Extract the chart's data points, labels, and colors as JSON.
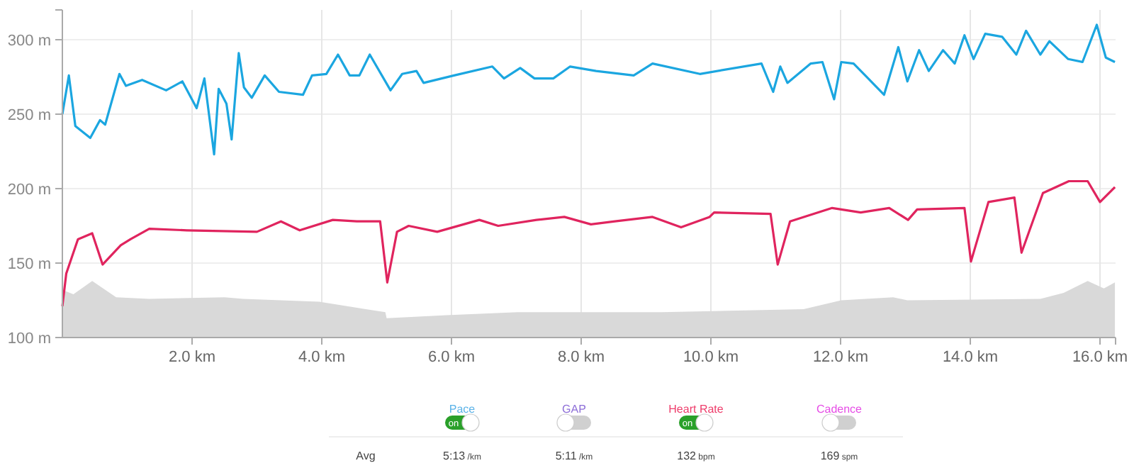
{
  "chart_data": [
    {
      "type": "line",
      "xlim": [
        0,
        16.24
      ],
      "ylim": [
        100,
        320
      ],
      "xticks": [
        {
          "value": 2,
          "label": "2.0 km"
        },
        {
          "value": 4,
          "label": "4.0 km"
        },
        {
          "value": 6,
          "label": "6.0 km"
        },
        {
          "value": 8,
          "label": "8.0 km"
        },
        {
          "value": 10,
          "label": "10.0 km"
        },
        {
          "value": 12,
          "label": "12.0 km"
        },
        {
          "value": 14,
          "label": "14.0 km"
        },
        {
          "value": 16,
          "label": "16.0 km"
        }
      ],
      "yticks": [
        {
          "value": 100,
          "label": "100 m"
        },
        {
          "value": 150,
          "label": "150 m"
        },
        {
          "value": 200,
          "label": "200 m"
        },
        {
          "value": 250,
          "label": "250 m"
        },
        {
          "value": 300,
          "label": "300 m"
        }
      ],
      "grid": true,
      "marker": "none",
      "series": [
        {
          "type": "area",
          "color": "#d9d9d9",
          "x": [
            0,
            0.17,
            0.46,
            0.83,
            1.34,
            2.5,
            2.79,
            3.96,
            4.98,
            5.0,
            5.92,
            7.02,
            8.2,
            9.24,
            11.43,
            12.01,
            12.81,
            13.03,
            15.08,
            15.44,
            15.81,
            16.06,
            16.23
          ],
          "values": [
            132,
            129,
            138,
            127,
            126,
            127,
            126,
            124,
            117,
            113,
            115,
            117,
            117,
            117,
            119,
            125,
            127,
            125,
            126,
            130,
            138,
            133,
            137
          ]
        },
        {
          "type": "line",
          "color": "#1ba6e0",
          "x": [
            0,
            0.1,
            0.2,
            0.43,
            0.58,
            0.66,
            0.88,
            0.98,
            1.23,
            1.6,
            1.85,
            2.07,
            2.19,
            2.34,
            2.41,
            2.53,
            2.61,
            2.72,
            2.8,
            2.92,
            3.12,
            3.34,
            3.71,
            3.85,
            4.07,
            4.25,
            4.43,
            4.58,
            4.74,
            5.06,
            5.24,
            5.46,
            5.57,
            6.04,
            6.63,
            6.81,
            7.06,
            7.28,
            7.57,
            7.83,
            8.23,
            8.81,
            9.1,
            9.83,
            10.78,
            10.96,
            11.07,
            11.18,
            11.54,
            11.72,
            11.9,
            12.01,
            12.2,
            12.38,
            12.67,
            12.89,
            13.03,
            13.21,
            13.36,
            13.58,
            13.76,
            13.91,
            14.05,
            14.23,
            14.49,
            14.71,
            14.86,
            15.08,
            15.22,
            15.51,
            15.73,
            15.95,
            16.09,
            16.23
          ],
          "values": [
            250,
            276,
            242,
            234,
            246,
            243,
            277,
            269,
            273,
            266,
            272,
            254,
            274,
            223,
            267,
            257,
            233,
            291,
            268,
            261,
            276,
            265,
            263,
            276,
            277,
            290,
            276,
            276,
            290,
            266,
            277,
            279,
            271,
            276,
            282,
            274,
            281,
            274,
            274,
            282,
            279,
            276,
            284,
            277,
            284,
            265,
            282,
            271,
            284,
            285,
            260,
            285,
            284,
            276,
            263,
            295,
            272,
            293,
            279,
            293,
            284,
            303,
            287,
            304,
            302,
            290,
            306,
            290,
            299,
            287,
            285,
            310,
            288,
            285
          ]
        },
        {
          "type": "line",
          "color": "#e0245e",
          "x": [
            0,
            0.06,
            0.24,
            0.46,
            0.62,
            0.9,
            1.05,
            1.34,
            1.92,
            3.0,
            3.37,
            3.66,
            4.17,
            4.54,
            4.9,
            5.01,
            5.16,
            5.34,
            5.78,
            6.43,
            6.72,
            7.31,
            7.74,
            8.15,
            8.52,
            9.1,
            9.54,
            9.98,
            10.05,
            10.92,
            11.03,
            11.22,
            11.87,
            12.31,
            12.75,
            13.04,
            13.18,
            13.91,
            14.01,
            14.28,
            14.68,
            14.79,
            15.12,
            15.52,
            15.81,
            16.0,
            16.23
          ],
          "values": [
            121,
            143,
            166,
            170,
            149,
            162,
            166,
            173,
            172,
            171,
            178,
            172,
            179,
            178,
            178,
            137,
            171,
            175,
            171,
            179,
            175,
            179,
            181,
            176,
            178,
            181,
            174,
            181,
            184,
            183,
            149,
            178,
            187,
            184,
            187,
            179,
            186,
            187,
            151,
            191,
            194,
            157,
            197,
            205,
            205,
            191,
            201
          ]
        }
      ]
    },
    {
      "type": "other",
      "categories": [
        "Pace",
        "GAP",
        "Heart Rate",
        "Cadence"
      ],
      "colors": [
        "#5cb3e8",
        "#8e6fd8",
        "#ee3d6b",
        "#e64ce6"
      ],
      "value_labels": [
        "on",
        null,
        "on",
        null
      ],
      "annotations": [
        "Avg",
        "5:13 /km",
        "5:11 /km",
        "132 bpm",
        "169 spm"
      ]
    }
  ]
}
